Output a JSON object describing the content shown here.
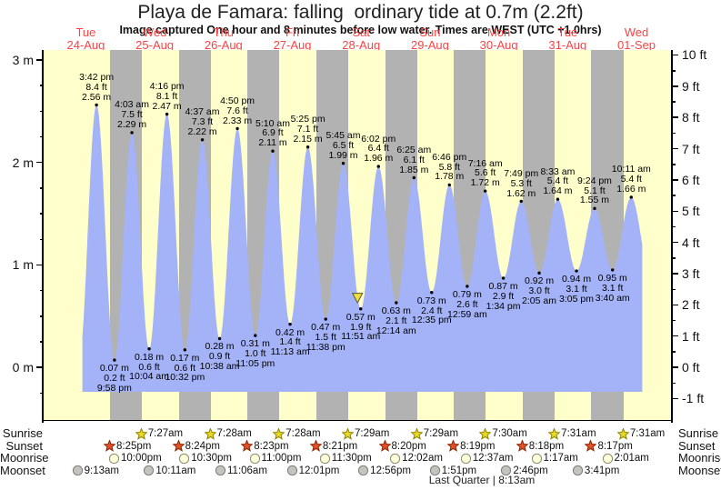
{
  "header": {
    "title": "Playa de Famara: falling  ordinary tide at 0.7m (2.2ft)",
    "subtitle": "Image captured One hour and 8 minutes before low water. Times are WEST (UTC +1.0hrs)"
  },
  "colors": {
    "day_bg": "#ffffcc",
    "night_bg": "#b2b2b2",
    "tide_fill": "#a4b2f8",
    "day_label_red": "#fb4343",
    "axis": "#000000",
    "marker_fill": "#f0e13a",
    "marker_edge": "#555533",
    "sunrise_star_fill": "#e8d827",
    "sunrise_star_edge": "#8f8500",
    "sunset_star_fill": "#e0512b",
    "sunset_star_edge": "#8c2500",
    "moonrise_fill": "#ffffd9",
    "moonrise_edge": "#8c8c6e",
    "moonset_fill": "#c4c4bc",
    "moonset_edge": "#7d7d7d"
  },
  "chart_data": {
    "type": "area",
    "title": "Playa de Famara: falling  ordinary tide at 0.7m (2.2ft)",
    "xlabel": "",
    "ylabel_left": "m",
    "ylabel_right": "ft",
    "ylim_m": [
      -0.52,
      3.1
    ],
    "grid": false,
    "days": [
      {
        "dow": "Tue",
        "date": "24-Aug"
      },
      {
        "dow": "Wed",
        "date": "25-Aug"
      },
      {
        "dow": "Thu",
        "date": "26-Aug"
      },
      {
        "dow": "Fri",
        "date": "27-Aug"
      },
      {
        "dow": "Sat",
        "date": "28-Aug"
      },
      {
        "dow": "Sun",
        "date": "29-Aug"
      },
      {
        "dow": "Mon",
        "date": "30-Aug"
      },
      {
        "dow": "Tue",
        "date": "31-Aug"
      },
      {
        "dow": "Wed",
        "date": "01-Sep"
      }
    ],
    "y_ticks_left": [
      {
        "m": 3,
        "label": "3 m"
      },
      {
        "m": 2,
        "label": "2 m"
      },
      {
        "m": 1,
        "label": "1 m"
      },
      {
        "m": 0,
        "label": "0 m"
      }
    ],
    "y_ticks_right": [
      {
        "ft": 10,
        "label": "10 ft"
      },
      {
        "ft": 9,
        "label": "9 ft"
      },
      {
        "ft": 8,
        "label": "8 ft"
      },
      {
        "ft": 7,
        "label": "7 ft"
      },
      {
        "ft": 6,
        "label": "6 ft"
      },
      {
        "ft": 5,
        "label": "5 ft"
      },
      {
        "ft": 4,
        "label": "4 ft"
      },
      {
        "ft": 3,
        "label": "3 ft"
      },
      {
        "ft": 2,
        "label": "2 ft"
      },
      {
        "ft": 1,
        "label": "1 ft"
      },
      {
        "ft": 0,
        "label": "0 ft"
      },
      {
        "ft": -1,
        "label": "-1 ft"
      }
    ],
    "extremes": [
      {
        "kind": "high",
        "t": 15.7,
        "m": 2.56,
        "time": "3:42 pm",
        "ft": "8.4 ft",
        "m_label": "2.56 m"
      },
      {
        "kind": "low",
        "t": 21.967,
        "m": 0.07,
        "time": "9:58 pm",
        "ft": "0.2 ft",
        "m_label": "0.07 m"
      },
      {
        "kind": "high",
        "t": 28.05,
        "m": 2.29,
        "time": "4:03 am",
        "ft": "7.5 ft",
        "m_label": "2.29 m"
      },
      {
        "kind": "low",
        "t": 34.067,
        "m": 0.18,
        "time": "10:04 am",
        "ft": "0.6 ft",
        "m_label": "0.18 m"
      },
      {
        "kind": "high",
        "t": 40.267,
        "m": 2.47,
        "time": "4:16 pm",
        "ft": "8.1 ft",
        "m_label": "2.47 m"
      },
      {
        "kind": "low",
        "t": 46.533,
        "m": 0.17,
        "time": "10:32 pm",
        "ft": "0.6 ft",
        "m_label": "0.17 m"
      },
      {
        "kind": "high",
        "t": 52.617,
        "m": 2.22,
        "time": "4:37 am",
        "ft": "7.3 ft",
        "m_label": "2.22 m"
      },
      {
        "kind": "low",
        "t": 58.633,
        "m": 0.28,
        "time": "10:38 am",
        "ft": "0.9 ft",
        "m_label": "0.28 m"
      },
      {
        "kind": "high",
        "t": 64.833,
        "m": 2.33,
        "time": "4:50 pm",
        "ft": "7.6 ft",
        "m_label": "2.33 m"
      },
      {
        "kind": "low",
        "t": 71.083,
        "m": 0.31,
        "time": "11:05 pm",
        "ft": "1.0 ft",
        "m_label": "0.31 m"
      },
      {
        "kind": "high",
        "t": 77.167,
        "m": 2.11,
        "time": "5:10 am",
        "ft": "6.9 ft",
        "m_label": "2.11 m"
      },
      {
        "kind": "low",
        "t": 83.217,
        "m": 0.42,
        "time": "11:13 am",
        "ft": "1.4 ft",
        "m_label": "0.42 m"
      },
      {
        "kind": "high",
        "t": 89.417,
        "m": 2.15,
        "time": "5:25 pm",
        "ft": "7.1 ft",
        "m_label": "2.15 m"
      },
      {
        "kind": "low",
        "t": 95.633,
        "m": 0.47,
        "time": "11:38 pm",
        "ft": "1.5 ft",
        "m_label": "0.47 m"
      },
      {
        "kind": "high",
        "t": 101.75,
        "m": 1.99,
        "time": "5:45 am",
        "ft": "6.5 ft",
        "m_label": "1.99 m"
      },
      {
        "kind": "low",
        "t": 107.85,
        "m": 0.57,
        "time": "11:51 am",
        "ft": "1.9 ft",
        "m_label": "0.57 m"
      },
      {
        "kind": "high",
        "t": 114.033,
        "m": 1.96,
        "time": "6:02 pm",
        "ft": "6.4 ft",
        "m_label": "1.96 m"
      },
      {
        "kind": "low",
        "t": 120.233,
        "m": 0.63,
        "time": "12:14 am",
        "ft": "2.1 ft",
        "m_label": "0.63 m"
      },
      {
        "kind": "high",
        "t": 126.417,
        "m": 1.85,
        "time": "6:25 am",
        "ft": "6.1 ft",
        "m_label": "1.85 m"
      },
      {
        "kind": "low",
        "t": 132.583,
        "m": 0.73,
        "time": "12:35 pm",
        "ft": "2.4 ft",
        "m_label": "0.73 m"
      },
      {
        "kind": "high",
        "t": 138.767,
        "m": 1.78,
        "time": "6:46 pm",
        "ft": "5.8 ft",
        "m_label": "1.78 m"
      },
      {
        "kind": "low",
        "t": 144.983,
        "m": 0.79,
        "time": "12:59 am",
        "ft": "2.6 ft",
        "m_label": "0.79 m"
      },
      {
        "kind": "high",
        "t": 151.267,
        "m": 1.72,
        "time": "7:16 am",
        "ft": "5.6 ft",
        "m_label": "1.72 m"
      },
      {
        "kind": "low",
        "t": 157.567,
        "m": 0.87,
        "time": "1:34 pm",
        "ft": "2.9 ft",
        "m_label": "0.87 m"
      },
      {
        "kind": "high",
        "t": 163.817,
        "m": 1.62,
        "time": "7:49 pm",
        "ft": "5.3 ft",
        "m_label": "1.62 m"
      },
      {
        "kind": "low",
        "t": 170.083,
        "m": 0.92,
        "time": "2:05 am",
        "ft": "3.0 ft",
        "m_label": "0.92 m"
      },
      {
        "kind": "high",
        "t": 176.55,
        "m": 1.64,
        "time": "8:33 am",
        "ft": "5.4 ft",
        "m_label": "1.64 m"
      },
      {
        "kind": "low",
        "t": 183.083,
        "m": 0.94,
        "time": "3:05 pm",
        "ft": "3.1 ft",
        "m_label": "0.94 m"
      },
      {
        "kind": "high",
        "t": 189.4,
        "m": 1.55,
        "time": "9:24 pm",
        "ft": "5.1 ft",
        "m_label": "1.55 m"
      },
      {
        "kind": "low",
        "t": 195.667,
        "m": 0.95,
        "time": "3:40 am",
        "ft": "3.1 ft",
        "m_label": "0.95 m"
      },
      {
        "kind": "high",
        "t": 202.183,
        "m": 1.66,
        "time": "10:11 am",
        "ft": "5.4 ft",
        "m_label": "1.66 m"
      }
    ],
    "night_bands": [
      [
        20.417,
        31.45
      ],
      [
        44.4,
        55.467
      ],
      [
        68.383,
        79.467
      ],
      [
        92.35,
        103.483
      ],
      [
        116.333,
        127.483
      ],
      [
        140.317,
        151.5
      ],
      [
        164.3,
        175.517
      ],
      [
        188.283,
        199.517
      ]
    ],
    "marker": {
      "t": 106.717,
      "m": 0.687
    },
    "curve_start": {
      "t": 9.55,
      "m": 0.05
    },
    "curve_end": {
      "t": 208.6,
      "m": 0.95
    },
    "fill_t_range": [
      10.59,
      206.2
    ],
    "fill_base_m": -0.24
  },
  "almanac": {
    "rows": [
      {
        "id": "sunrise",
        "label": "Sunrise",
        "icon": "sunrise-star-icon",
        "events": [
          {
            "t": 31.45,
            "time": "7:27am"
          },
          {
            "t": 55.467,
            "time": "7:28am"
          },
          {
            "t": 79.467,
            "time": "7:28am"
          },
          {
            "t": 103.483,
            "time": "7:29am"
          },
          {
            "t": 127.483,
            "time": "7:29am"
          },
          {
            "t": 151.5,
            "time": "7:30am"
          },
          {
            "t": 175.517,
            "time": "7:31am"
          },
          {
            "t": 199.517,
            "time": "7:31am"
          }
        ]
      },
      {
        "id": "sunset",
        "label": "Sunset",
        "icon": "sunset-star-icon",
        "events": [
          {
            "t": 20.417,
            "time": "8:25pm"
          },
          {
            "t": 44.4,
            "time": "8:24pm"
          },
          {
            "t": 68.383,
            "time": "8:23pm"
          },
          {
            "t": 92.35,
            "time": "8:21pm"
          },
          {
            "t": 116.333,
            "time": "8:20pm"
          },
          {
            "t": 140.317,
            "time": "8:19pm"
          },
          {
            "t": 164.3,
            "time": "8:18pm"
          },
          {
            "t": 188.283,
            "time": "8:17pm"
          }
        ]
      },
      {
        "id": "moonrise",
        "label": "Moonrise",
        "icon": "moonrise-icon",
        "events": [
          {
            "t": 22.0,
            "time": "10:00pm"
          },
          {
            "t": 46.5,
            "time": "10:30pm"
          },
          {
            "t": 71.0,
            "time": "11:00pm"
          },
          {
            "t": 95.5,
            "time": "11:30pm"
          },
          {
            "t": 120.033,
            "time": "12:02am"
          },
          {
            "t": 144.617,
            "time": "12:37am"
          },
          {
            "t": 169.283,
            "time": "1:17am"
          },
          {
            "t": 194.017,
            "time": "2:01am"
          }
        ]
      },
      {
        "id": "moonset",
        "label": "Moonset",
        "icon": "moonset-icon",
        "events": [
          {
            "t": 9.217,
            "time": "9:13am"
          },
          {
            "t": 34.183,
            "time": "10:11am"
          },
          {
            "t": 59.1,
            "time": "11:06am"
          },
          {
            "t": 84.017,
            "time": "12:01pm"
          },
          {
            "t": 108.933,
            "time": "12:56pm"
          },
          {
            "t": 133.85,
            "time": "1:51pm"
          },
          {
            "t": 158.767,
            "time": "2:46pm"
          },
          {
            "t": 183.683,
            "time": "3:41pm"
          }
        ]
      }
    ],
    "footer": "Last Quarter | 8:13am"
  }
}
